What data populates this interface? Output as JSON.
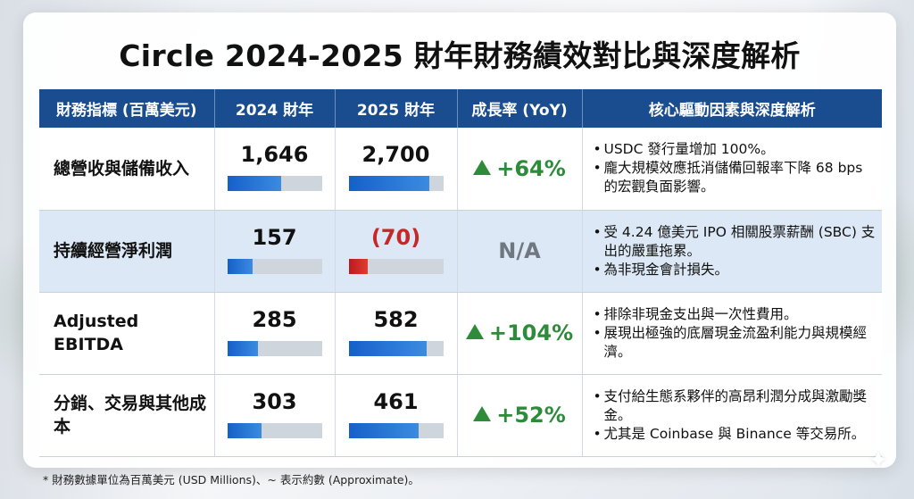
{
  "title": "Circle 2024-2025 財年財務績效對比與深度解析",
  "headers": [
    "財務指標 (百萬美元)",
    "2024 財年",
    "2025 財年",
    "成長率 (YoY)",
    "核心驅動因素與深度解析"
  ],
  "rows": [
    {
      "label": "總營收與儲備收入",
      "v2024": "1,646",
      "v2024_fill": 0.57,
      "v2025": "2,700",
      "v2025_fill": 0.85,
      "yoy": "+64%",
      "notes": [
        "USDC 發行量增加 100%。",
        "龐大規模效應抵消儲備回報率下降 68 bps 的宏觀負面影響。"
      ]
    },
    {
      "label": "持續經營淨利潤",
      "v2024": "157",
      "v2024_fill": 0.27,
      "v2025": "(70)",
      "v2025_fill": 0.2,
      "yoy": "N/A",
      "notes": [
        "受 4.24 億美元 IPO 相關股票薪酬 (SBC) 支出的嚴重拖累。",
        "為非現金會計損失。"
      ]
    },
    {
      "label": "Adjusted EBITDA",
      "v2024": "285",
      "v2024_fill": 0.33,
      "v2025": "582",
      "v2025_fill": 0.83,
      "yoy": "+104%",
      "notes": [
        "排除非現金支出與一次性費用。",
        "展現出極強的底層現金流盈利能力與規模經濟。"
      ]
    },
    {
      "label": "分銷、交易與其他成本",
      "v2024": "303",
      "v2024_fill": 0.36,
      "v2025": "461",
      "v2025_fill": 0.74,
      "yoy": "+52%",
      "notes": [
        "支付給生態系夥伴的高昂利潤分成與激勵獎金。",
        "尤其是 Coinbase 與 Binance 等交易所。"
      ]
    }
  ],
  "footnote": "* 財務數據單位為百萬美元 (USD Millions)、~ 表示約數 (Approximate)。",
  "colors": {
    "header": "#1a4d8f",
    "positive": "#2e8b3a",
    "negative": "#c62828",
    "bar": "#1560c9",
    "row_alt": "#dce8f5"
  },
  "icons": {
    "up": "triangle-up-icon",
    "sparkle": "sparkle-icon"
  }
}
